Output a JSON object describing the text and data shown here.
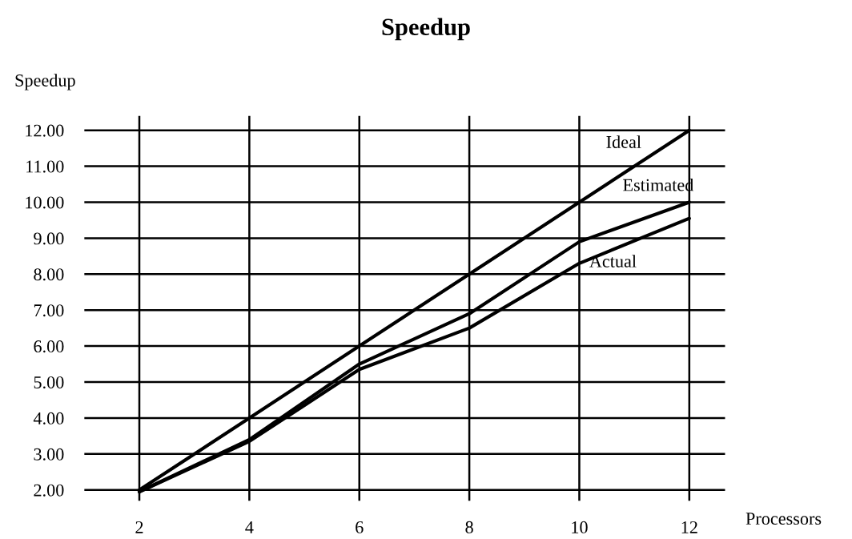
{
  "chart_data": {
    "type": "line",
    "title": "Speedup",
    "xlabel": "Processors",
    "ylabel": "Speedup",
    "x": [
      2,
      4,
      6,
      8,
      10,
      12
    ],
    "series": [
      {
        "name": "Ideal",
        "color": "#000000",
        "values": [
          2,
          4,
          6,
          8,
          10,
          12
        ]
      },
      {
        "name": "Estimated",
        "color": "#000000",
        "values": [
          1.95,
          3.4,
          5.5,
          6.9,
          8.9,
          10.0
        ]
      },
      {
        "name": "Actual",
        "color": "#000000",
        "values": [
          1.95,
          3.35,
          5.35,
          6.5,
          8.3,
          9.55
        ]
      }
    ],
    "xlim": [
      1,
      12.65
    ],
    "xticks": [
      2,
      4,
      6,
      8,
      10,
      12
    ],
    "ylim": [
      1.7,
      12.4
    ],
    "yticks": [
      {
        "value": 2,
        "label": "2.00"
      },
      {
        "value": 3,
        "label": "3.00"
      },
      {
        "value": 4,
        "label": "4.00"
      },
      {
        "value": 5,
        "label": "5.00"
      },
      {
        "value": 6,
        "label": "6.00"
      },
      {
        "value": 7,
        "label": "7.00"
      },
      {
        "value": 8,
        "label": "8.00"
      },
      {
        "value": 9,
        "label": "9.00"
      },
      {
        "value": 10,
        "label": "10.00"
      },
      {
        "value": 11,
        "label": "11.00"
      },
      {
        "value": 12,
        "label": "12.00"
      }
    ],
    "grid": true,
    "legend": false,
    "marker": "none",
    "line_style": "solid"
  }
}
